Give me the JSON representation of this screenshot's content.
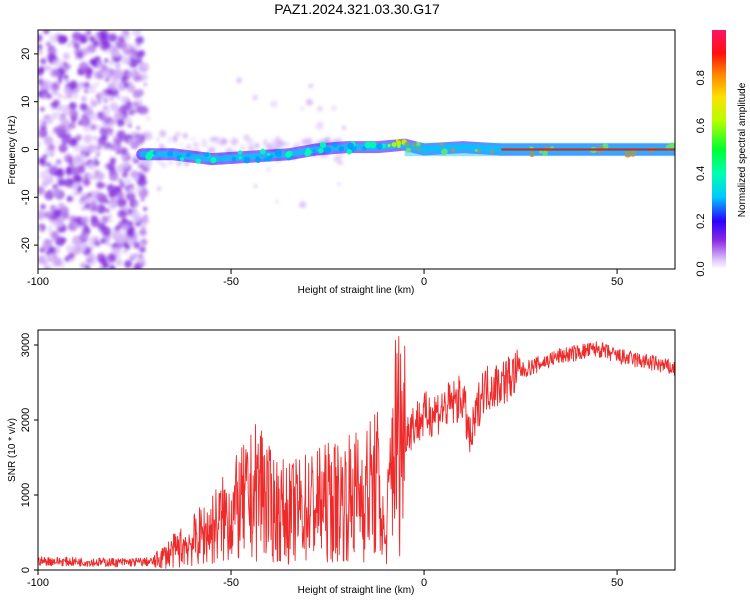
{
  "title": "PAZ1.2024.321.03.30.G17",
  "colors": {
    "snr_line": "#ee2a2a",
    "carrier_band": "#d42828"
  },
  "chart_data": [
    {
      "type": "heatmap",
      "xlabel": "Height of straight line (km)",
      "ylabel": "Frequency (Hz)",
      "xlim": [
        -100,
        65
      ],
      "ylim": [
        -25,
        25
      ],
      "x_ticks": [
        -100,
        -50,
        0,
        50
      ],
      "y_ticks": [
        -20,
        -10,
        0,
        10,
        20
      ],
      "colorbar": {
        "label": "Normalized spectral amplitude",
        "range": [
          0,
          1
        ],
        "ticks": [
          "0.0",
          "0.2",
          "0.4",
          "0.6",
          "0.8"
        ]
      },
      "ridge": [
        {
          "x": -73,
          "y": -1
        },
        {
          "x": -65,
          "y": -1
        },
        {
          "x": -55,
          "y": -2
        },
        {
          "x": -45,
          "y": -1.5
        },
        {
          "x": -35,
          "y": -1
        },
        {
          "x": -28,
          "y": 0
        },
        {
          "x": -20,
          "y": 0.5
        },
        {
          "x": -12,
          "y": 0.5
        },
        {
          "x": -5,
          "y": 1
        },
        {
          "x": 0,
          "y": 0
        },
        {
          "x": 10,
          "y": 0.5
        },
        {
          "x": 20,
          "y": 0
        },
        {
          "x": 65,
          "y": 0
        }
      ]
    },
    {
      "type": "line",
      "xlabel": "Height of straight line (km)",
      "ylabel": "SNR (10 * v/v)",
      "xlim": [
        -100,
        65
      ],
      "ylim": [
        0,
        3200
      ],
      "x_ticks": [
        -100,
        -50,
        0,
        50
      ],
      "y_ticks": [
        0,
        1000,
        2000,
        3000
      ],
      "series": [
        {
          "x": [
            -100,
            -90,
            -80,
            -70,
            -65,
            -60,
            -55,
            -50,
            -45,
            -42,
            -40,
            -35,
            -30,
            -25,
            -20,
            -15,
            -12,
            -10,
            -8,
            -5,
            0,
            5,
            10,
            12,
            15,
            20,
            25,
            30,
            35,
            40,
            45,
            50,
            55,
            60,
            65
          ],
          "y": [
            120,
            110,
            100,
            110,
            250,
            380,
            550,
            750,
            950,
            1150,
            850,
            750,
            850,
            900,
            950,
            1050,
            1150,
            300,
            1700,
            1850,
            2050,
            2150,
            2300,
            1700,
            2400,
            2500,
            2650,
            2750,
            2850,
            2900,
            2950,
            2850,
            2800,
            2750,
            2680
          ]
        }
      ]
    }
  ]
}
